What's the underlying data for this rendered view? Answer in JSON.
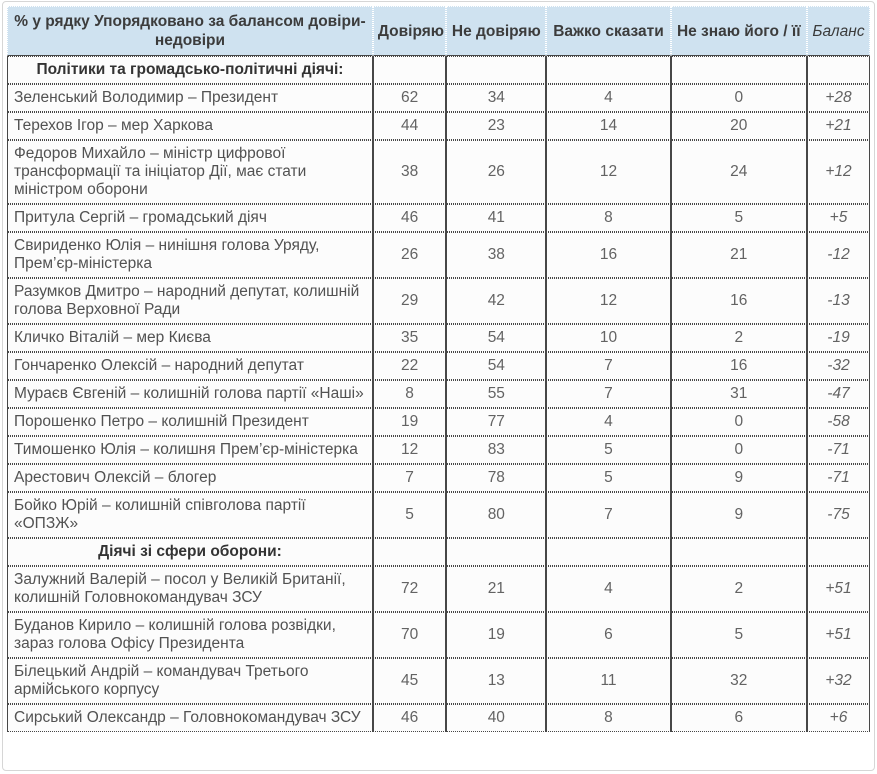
{
  "table": {
    "corner_header": "% у рядку Упорядковано за балансом довіри-недовіри",
    "columns": [
      "Довіряю",
      "Не довіряю",
      "Важко сказати",
      "Не знаю його / її",
      "Баланс"
    ],
    "sections": [
      {
        "title": "Політики та громадсько-політичні діячі:",
        "rows": [
          {
            "name": "Зеленський Володимир – Президент",
            "values": [
              "62",
              "34",
              "4",
              "0"
            ],
            "balance": "+28"
          },
          {
            "name": "Терехов Ігор – мер Харкова",
            "values": [
              "44",
              "23",
              "14",
              "20"
            ],
            "balance": "+21"
          },
          {
            "name": "Федоров Михайло – міністр цифрової трансформації та ініціатор Дії, має стати міністром оборони",
            "values": [
              "38",
              "26",
              "12",
              "24"
            ],
            "balance": "+12"
          },
          {
            "name": "Притула Сергій – громадський діяч",
            "values": [
              "46",
              "41",
              "8",
              "5"
            ],
            "balance": "+5"
          },
          {
            "name": "Свириденко Юлія – нинішня голова Уряду, Прем’єр-міністерка",
            "values": [
              "26",
              "38",
              "16",
              "21"
            ],
            "balance": "-12"
          },
          {
            "name": "Разумков Дмитро – народний депутат, колишній голова Верховної Ради",
            "values": [
              "29",
              "42",
              "12",
              "16"
            ],
            "balance": "-13"
          },
          {
            "name": "Кличко Віталій – мер Києва",
            "values": [
              "35",
              "54",
              "10",
              "2"
            ],
            "balance": "-19"
          },
          {
            "name": "Гончаренко Олексій – народний депутат",
            "values": [
              "22",
              "54",
              "7",
              "16"
            ],
            "balance": "-32"
          },
          {
            "name": "Мураєв Євгеній – колишній голова партії «Наші»",
            "values": [
              "8",
              "55",
              "7",
              "31"
            ],
            "balance": "-47"
          },
          {
            "name": "Порошенко Петро – колишній Президент",
            "values": [
              "19",
              "77",
              "4",
              "0"
            ],
            "balance": "-58"
          },
          {
            "name": "Тимошенко Юлія – колишня Прем’єр-міністерка",
            "values": [
              "12",
              "83",
              "5",
              "0"
            ],
            "balance": "-71"
          },
          {
            "name": "Арестович Олексій – блогер",
            "values": [
              "7",
              "78",
              "5",
              "9"
            ],
            "balance": "-71"
          },
          {
            "name": "Бойко Юрій – колишній співголова партії «ОПЗЖ»",
            "values": [
              "5",
              "80",
              "7",
              "9"
            ],
            "balance": "-75"
          }
        ]
      },
      {
        "title": "Діячі зі сфери оборони:",
        "rows": [
          {
            "name": "Залужний Валерій – посол у Великій Британії, колишній Головнокомандувач ЗСУ",
            "values": [
              "72",
              "21",
              "4",
              "2"
            ],
            "balance": "+51"
          },
          {
            "name": "Буданов Кирило – колишній голова розвідки, зараз голова Офісу Президента",
            "values": [
              "70",
              "19",
              "6",
              "5"
            ],
            "balance": "+51"
          },
          {
            "name": "Білецький Андрій – командувач Третього армійського корпусу",
            "values": [
              "45",
              "13",
              "11",
              "32"
            ],
            "balance": "+32"
          },
          {
            "name": "Сирський Олександр – Головнокомандувач ЗСУ",
            "values": [
              "46",
              "40",
              "8",
              "6"
            ],
            "balance": "+6"
          }
        ]
      }
    ]
  },
  "colors": {
    "header_bg": "#cfe2f0",
    "border_dark": "#474747",
    "header_text": "#3c3c3c",
    "cell_text": "#5e5e5e"
  }
}
